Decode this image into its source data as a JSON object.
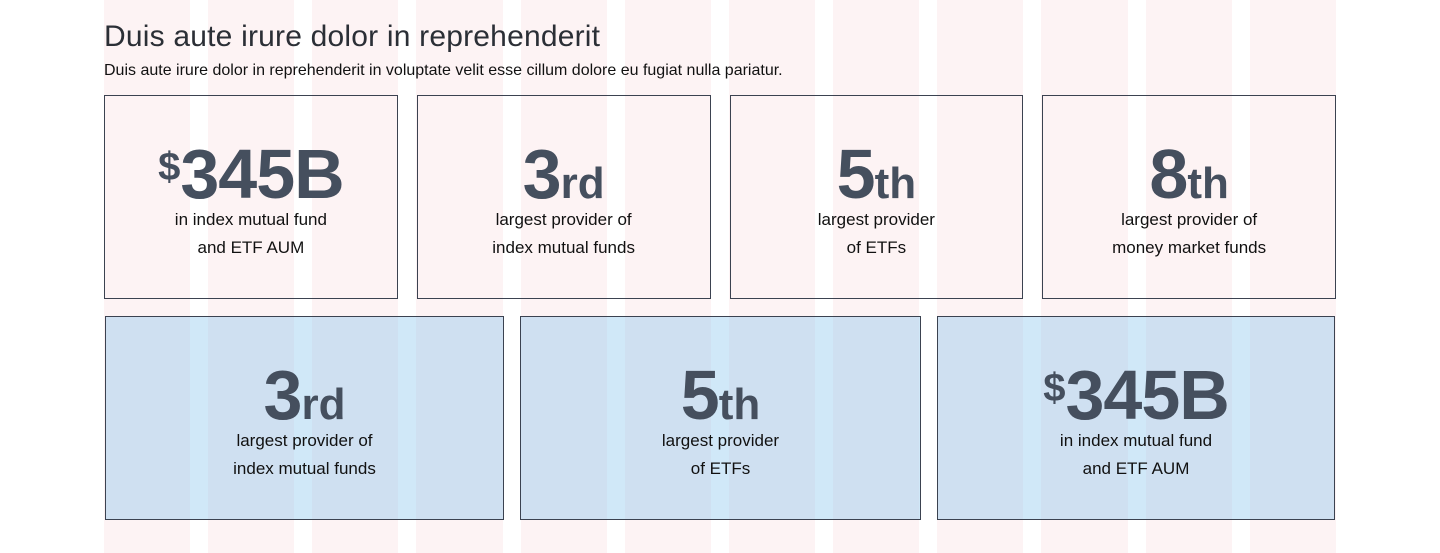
{
  "section": {
    "title": "Duis aute irure dolor in reprehenderit",
    "description": "Duis aute irure dolor in reprehenderit in voluptate velit esse cillum dolore eu fugiat nulla pariatur."
  },
  "colors": {
    "grid_column": "#fdf3f4",
    "card_border": "#3b4250",
    "figure_text": "#454f5e",
    "highlight_fill": "#c9e6f7"
  },
  "stats_row_1": [
    {
      "prefix": "$",
      "value": "345B",
      "suffix": "",
      "caption_line_1": "in index mutual fund",
      "caption_line_2": "and ETF AUM"
    },
    {
      "prefix": "",
      "value": "3",
      "suffix": "rd",
      "caption_line_1": "largest provider of",
      "caption_line_2": "index mutual funds"
    },
    {
      "prefix": "",
      "value": "5",
      "suffix": "th",
      "caption_line_1": "largest provider",
      "caption_line_2": "of ETFs"
    },
    {
      "prefix": "",
      "value": "8",
      "suffix": "th",
      "caption_line_1": "largest provider of",
      "caption_line_2": "money market funds"
    }
  ],
  "stats_row_2": [
    {
      "prefix": "",
      "value": "3",
      "suffix": "rd",
      "caption_line_1": "largest provider of",
      "caption_line_2": "index mutual funds"
    },
    {
      "prefix": "",
      "value": "5",
      "suffix": "th",
      "caption_line_1": "largest provider",
      "caption_line_2": "of ETFs"
    },
    {
      "prefix": "$",
      "value": "345B",
      "suffix": "",
      "caption_line_1": "in index mutual fund",
      "caption_line_2": "and ETF AUM"
    }
  ]
}
